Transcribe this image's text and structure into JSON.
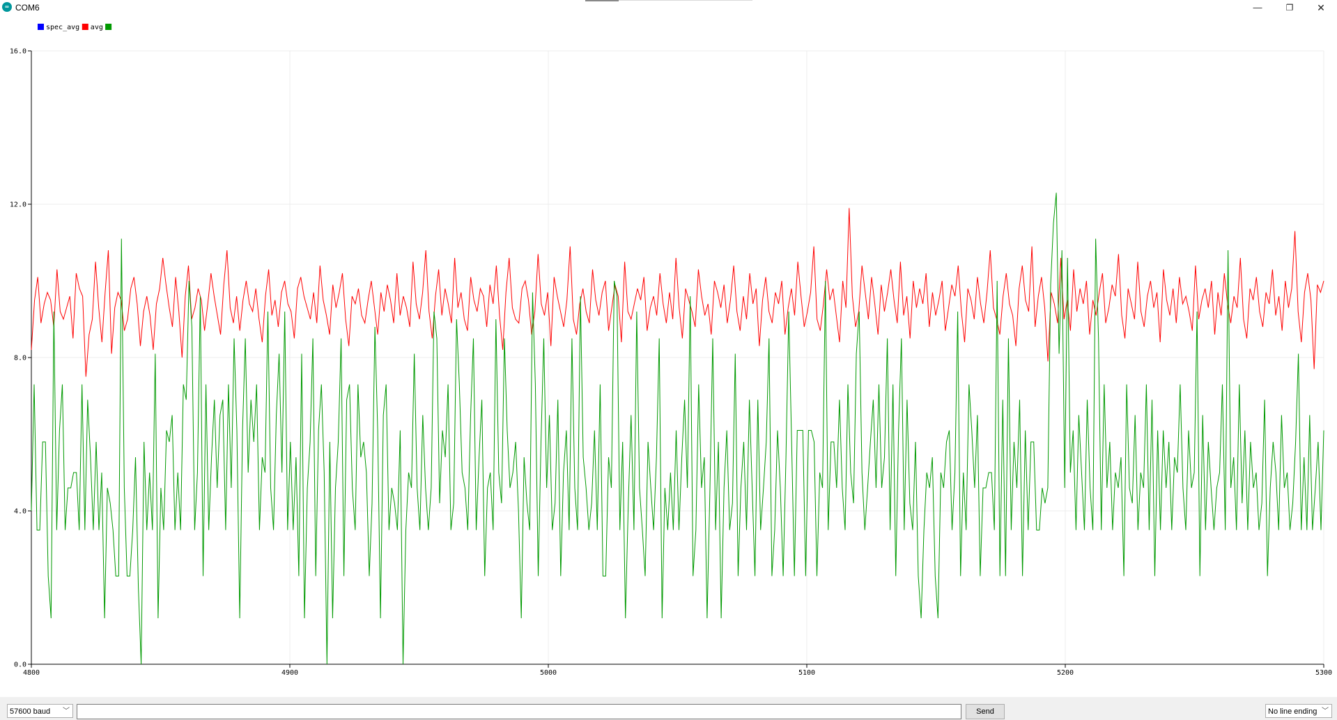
{
  "window": {
    "title": "COM6",
    "icon": "arduino-icon",
    "controls": {
      "minimize": "—",
      "maximize": "❐",
      "close": "✕"
    }
  },
  "legend": [
    {
      "name": "spec_avg",
      "color": "#0000ff"
    },
    {
      "name": "avg",
      "color": "#ff0000"
    },
    {
      "name": "",
      "color": "#009900"
    }
  ],
  "bottom": {
    "baud": "57600 baud",
    "send_label": "Send",
    "line_ending": "No line ending",
    "input_value": ""
  },
  "chart_data": {
    "type": "line",
    "xlim": [
      4800,
      5300
    ],
    "ylim": [
      0,
      16
    ],
    "x_ticks": [
      4800,
      4900,
      5000,
      5100,
      5200,
      5300
    ],
    "y_ticks": [
      0,
      4,
      8,
      12,
      16
    ],
    "x_tick_labels": [
      "4800",
      "4900",
      "5000",
      "5100",
      "5200",
      "5300"
    ],
    "y_tick_labels": [
      "0.0",
      "4.0",
      "8.0",
      "12.0",
      "16.0"
    ],
    "grid": true,
    "x_start": 4800,
    "x_step": 1,
    "series": [
      {
        "name": "avg",
        "color": "#ff0000",
        "values": [
          8.2,
          9.5,
          10.1,
          8.9,
          9.4,
          9.7,
          9.5,
          8.8,
          10.3,
          9.2,
          9.0,
          9.3,
          9.6,
          8.5,
          10.2,
          9.8,
          9.6,
          7.5,
          8.6,
          9.0,
          10.5,
          9.3,
          8.4,
          9.7,
          10.8,
          8.1,
          9.3,
          9.7,
          9.5,
          8.7,
          9.0,
          9.8,
          10.1,
          9.4,
          8.3,
          9.2,
          9.6,
          9.1,
          8.2,
          9.4,
          9.8,
          10.6,
          9.9,
          9.3,
          8.8,
          10.1,
          9.2,
          8.0,
          9.6,
          10.4,
          9.0,
          9.3,
          9.8,
          9.5,
          8.7,
          9.4,
          10.2,
          9.6,
          9.1,
          8.6,
          9.9,
          10.8,
          9.3,
          8.9,
          9.6,
          8.7,
          9.5,
          10.0,
          9.4,
          9.2,
          9.8,
          9.0,
          8.4,
          9.6,
          10.3,
          9.1,
          9.5,
          8.8,
          9.7,
          10.0,
          9.4,
          9.2,
          8.5,
          9.8,
          10.1,
          9.6,
          9.3,
          9.0,
          9.7,
          8.9,
          10.4,
          9.5,
          9.1,
          8.6,
          9.9,
          9.3,
          9.7,
          10.2,
          9.0,
          8.3,
          9.6,
          9.4,
          9.8,
          9.1,
          8.9,
          9.5,
          10.0,
          9.3,
          8.6,
          9.7,
          9.2,
          9.9,
          9.5,
          8.9,
          10.2,
          9.1,
          9.6,
          9.3,
          8.8,
          10.5,
          9.4,
          9.0,
          9.7,
          10.8,
          9.2,
          8.5,
          9.6,
          10.3,
          9.1,
          9.8,
          9.4,
          8.9,
          10.6,
          9.3,
          9.7,
          9.0,
          8.7,
          10.1,
          9.5,
          9.2,
          9.8,
          9.6,
          8.8,
          9.9,
          9.4,
          10.4,
          9.1,
          8.2,
          9.7,
          10.6,
          9.3,
          9.0,
          8.9,
          9.8,
          10.0,
          9.5,
          8.6,
          9.2,
          10.7,
          9.4,
          9.1,
          9.7,
          8.3,
          10.1,
          9.6,
          9.2,
          8.8,
          9.5,
          10.9,
          9.0,
          8.6,
          9.4,
          9.8,
          9.2,
          8.9,
          10.3,
          9.5,
          9.1,
          9.7,
          10.0,
          8.7,
          9.3,
          9.9,
          9.6,
          8.4,
          10.5,
          9.2,
          9.0,
          9.4,
          9.8,
          9.5,
          10.1,
          8.7,
          9.3,
          9.6,
          9.1,
          10.2,
          9.4,
          8.9,
          9.7,
          9.0,
          10.6,
          9.3,
          8.5,
          9.8,
          9.5,
          9.2,
          8.8,
          10.3,
          9.6,
          9.1,
          9.4,
          8.6,
          10.0,
          9.7,
          9.3,
          9.9,
          8.9,
          9.5,
          10.4,
          9.2,
          8.7,
          9.6,
          9.0,
          10.2,
          9.4,
          9.8,
          8.3,
          9.5,
          10.1,
          9.2,
          8.9,
          9.7,
          9.4,
          10.0,
          8.6,
          9.3,
          9.8,
          9.1,
          10.5,
          9.6,
          8.8,
          9.2,
          9.7,
          10.9,
          9.0,
          8.7,
          9.4,
          10.3,
          9.5,
          9.8,
          9.1,
          8.4,
          10.0,
          9.3,
          11.9,
          9.6,
          8.8,
          9.2,
          10.4,
          9.7,
          9.0,
          10.1,
          9.4,
          8.6,
          9.9,
          9.2,
          9.7,
          10.3,
          9.5,
          8.9,
          10.5,
          9.1,
          9.6,
          8.5,
          10.0,
          9.3,
          9.8,
          9.4,
          10.2,
          8.8,
          9.7,
          9.1,
          9.5,
          10.0,
          8.7,
          9.3,
          9.9,
          9.6,
          10.4,
          9.2,
          8.4,
          9.8,
          9.5,
          9.0,
          10.1,
          9.4,
          8.9,
          9.7,
          10.8,
          9.3,
          9.0,
          8.6,
          9.6,
          10.2,
          9.4,
          9.1,
          8.3,
          9.8,
          10.4,
          9.5,
          9.2,
          10.9,
          8.8,
          9.6,
          10.1,
          9.3,
          7.9,
          9.7,
          9.4,
          8.9,
          10.6,
          9.0,
          9.5,
          8.7,
          10.3,
          9.2,
          9.8,
          9.4,
          10.0,
          8.6,
          9.5,
          9.1,
          9.7,
          10.2,
          8.9,
          9.3,
          9.9,
          9.6,
          10.7,
          9.1,
          8.5,
          9.8,
          9.4,
          9.0,
          10.5,
          9.2,
          8.8,
          9.6,
          10.0,
          9.3,
          9.7,
          8.4,
          10.3,
          9.5,
          9.1,
          9.8,
          8.9,
          10.1,
          9.4,
          9.6,
          9.2,
          8.7,
          10.4,
          9.0,
          9.5,
          9.8,
          9.3,
          10.0,
          8.6,
          9.7,
          9.1,
          10.2,
          9.4,
          8.9,
          9.6,
          9.3,
          10.6,
          9.0,
          8.5,
          9.8,
          9.5,
          10.1,
          9.2,
          8.8,
          9.7,
          9.4,
          10.3,
          9.1,
          9.6,
          8.7,
          10.0,
          9.3,
          9.8,
          11.3,
          9.2,
          8.4,
          9.7,
          10.2,
          9.5,
          7.7,
          9.9,
          9.7,
          10.0
        ]
      },
      {
        "name": "",
        "color": "#009900",
        "values": [
          4.0,
          7.3,
          3.5,
          3.5,
          5.8,
          5.8,
          2.3,
          1.2,
          9.2,
          3.5,
          6.1,
          7.3,
          3.5,
          4.6,
          4.6,
          5.0,
          5.0,
          3.5,
          7.3,
          3.5,
          6.9,
          5.4,
          3.5,
          5.8,
          3.5,
          5.0,
          1.2,
          4.6,
          4.2,
          3.5,
          2.3,
          2.3,
          11.1,
          4.6,
          2.3,
          2.3,
          3.5,
          5.4,
          2.0,
          0.0,
          5.8,
          3.5,
          5.0,
          3.5,
          8.1,
          1.2,
          4.6,
          3.5,
          6.1,
          5.8,
          6.5,
          3.5,
          5.0,
          3.5,
          7.3,
          6.9,
          10.0,
          8.8,
          3.5,
          5.0,
          9.6,
          2.3,
          7.3,
          3.5,
          5.4,
          6.9,
          4.6,
          6.5,
          6.9,
          3.5,
          7.3,
          4.6,
          8.5,
          6.1,
          1.2,
          6.1,
          8.5,
          5.0,
          6.9,
          5.8,
          7.3,
          3.5,
          5.4,
          5.0,
          9.2,
          4.6,
          3.5,
          6.5,
          8.1,
          5.0,
          9.2,
          3.5,
          5.8,
          3.5,
          5.4,
          2.3,
          8.1,
          1.2,
          4.6,
          5.8,
          8.5,
          2.3,
          6.1,
          7.3,
          5.0,
          0.0,
          5.8,
          1.2,
          4.6,
          5.8,
          8.5,
          2.3,
          6.9,
          7.3,
          4.6,
          3.5,
          7.3,
          5.4,
          5.8,
          5.0,
          2.3,
          4.2,
          8.8,
          6.1,
          1.2,
          6.5,
          7.3,
          3.5,
          4.6,
          4.2,
          3.5,
          6.1,
          0.0,
          3.5,
          5.0,
          4.6,
          8.1,
          4.6,
          3.5,
          6.5,
          4.6,
          3.5,
          4.6,
          9.2,
          8.5,
          4.2,
          6.1,
          5.4,
          7.3,
          3.5,
          4.2,
          9.0,
          7.3,
          5.0,
          4.6,
          3.5,
          6.5,
          8.5,
          3.5,
          5.4,
          6.9,
          2.3,
          4.6,
          5.0,
          3.5,
          9.0,
          5.0,
          4.2,
          8.5,
          6.1,
          4.6,
          5.0,
          5.8,
          4.0,
          1.2,
          5.4,
          4.2,
          3.5,
          9.7,
          7.3,
          2.3,
          5.8,
          8.5,
          4.6,
          6.5,
          3.5,
          4.2,
          6.9,
          2.3,
          5.0,
          6.1,
          3.5,
          8.5,
          4.6,
          3.5,
          9.6,
          5.4,
          4.6,
          3.5,
          4.2,
          6.1,
          3.5,
          7.3,
          2.3,
          2.3,
          5.4,
          4.6,
          10.0,
          9.6,
          3.5,
          5.8,
          1.2,
          4.2,
          6.5,
          3.5,
          9.2,
          4.6,
          3.5,
          2.3,
          5.8,
          4.6,
          3.5,
          5.4,
          8.5,
          1.2,
          4.6,
          3.5,
          5.0,
          3.5,
          6.1,
          3.5,
          5.4,
          6.9,
          4.6,
          9.6,
          2.3,
          3.5,
          7.3,
          4.6,
          5.4,
          1.2,
          4.6,
          8.5,
          3.5,
          5.8,
          1.2,
          4.6,
          6.1,
          3.5,
          4.2,
          8.1,
          2.3,
          4.6,
          5.8,
          3.5,
          6.9,
          4.6,
          2.3,
          6.9,
          3.5,
          4.6,
          5.8,
          8.5,
          2.3,
          3.5,
          6.1,
          4.6,
          2.3,
          5.4,
          9.2,
          5.8,
          2.3,
          6.1,
          6.1,
          6.1,
          2.3,
          6.1,
          6.1,
          5.8,
          2.3,
          5.0,
          4.6,
          10.0,
          3.5,
          5.8,
          5.8,
          4.6,
          6.9,
          4.6,
          3.5,
          7.3,
          5.0,
          4.2,
          8.1,
          9.2,
          5.0,
          3.5,
          4.6,
          5.8,
          6.9,
          4.6,
          7.3,
          4.6,
          5.4,
          8.5,
          3.5,
          7.3,
          2.3,
          6.1,
          8.5,
          3.5,
          6.9,
          4.2,
          3.5,
          5.8,
          2.3,
          1.2,
          3.5,
          5.0,
          4.6,
          5.4,
          2.3,
          1.2,
          5.0,
          4.6,
          5.8,
          6.1,
          3.5,
          5.0,
          9.2,
          2.3,
          5.0,
          3.5,
          7.3,
          6.1,
          4.6,
          6.5,
          2.3,
          4.6,
          4.6,
          5.0,
          5.0,
          3.5,
          10.0,
          2.3,
          6.9,
          2.3,
          8.5,
          3.5,
          5.8,
          4.6,
          6.9,
          2.3,
          6.1,
          3.5,
          5.8,
          5.8,
          3.5,
          3.5,
          4.6,
          4.2,
          4.6,
          9.9,
          11.5,
          12.3,
          8.1,
          10.8,
          4.6,
          10.6,
          5.0,
          6.1,
          3.5,
          6.5,
          5.0,
          3.5,
          6.9,
          4.6,
          3.5,
          11.1,
          8.5,
          3.5,
          7.3,
          4.6,
          5.8,
          3.5,
          5.0,
          4.6,
          5.4,
          2.3,
          7.3,
          4.6,
          4.2,
          6.5,
          3.5,
          5.0,
          4.6,
          7.3,
          3.5,
          6.9,
          2.3,
          6.1,
          3.5,
          6.1,
          4.6,
          5.8,
          3.5,
          5.4,
          5.0,
          7.3,
          4.6,
          3.5,
          6.1,
          4.6,
          5.0,
          9.2,
          2.3,
          6.5,
          3.5,
          5.8,
          4.6,
          3.5,
          4.6,
          5.0,
          7.3,
          3.5,
          10.8,
          4.6,
          5.4,
          3.5,
          7.3,
          4.2,
          6.1,
          3.5,
          5.8,
          4.6,
          5.0,
          3.5,
          4.2,
          6.9,
          2.3,
          4.6,
          5.8,
          5.0,
          3.5,
          6.5,
          4.6,
          5.0,
          3.5,
          4.2,
          5.8,
          8.1,
          3.5,
          5.4,
          3.5,
          6.5,
          3.5,
          4.6,
          5.8,
          3.5,
          6.1
        ]
      }
    ]
  }
}
